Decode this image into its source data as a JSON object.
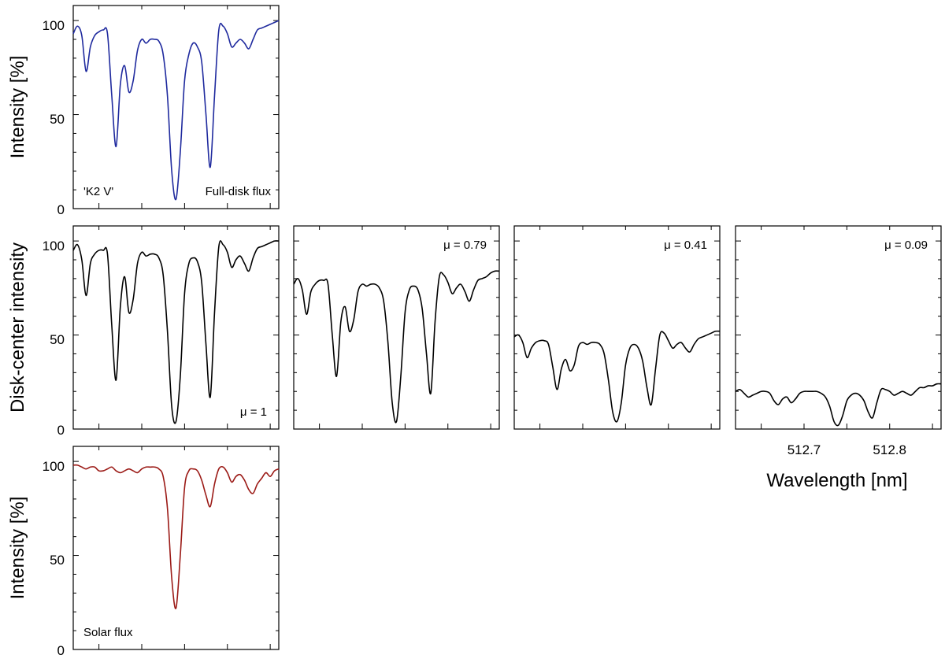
{
  "colors": {
    "k2": "#1f2a9e",
    "disk": "#000000",
    "solar": "#9b1a16"
  },
  "chart_data": [
    {
      "id": "k2",
      "type": "line",
      "ylabel": "Intensity [%]",
      "labels": [
        "'K2 V'",
        "Full-disk flux"
      ],
      "yticks": [
        "0",
        "50",
        "100"
      ],
      "ylim": [
        0,
        108
      ],
      "xlim": [
        512.62,
        512.86
      ],
      "series": [
        {
          "color": "k2",
          "continuum": 97,
          "shape": 1.0,
          "x": [
            512.62,
            512.625,
            512.63,
            512.635,
            512.64,
            512.645,
            512.65,
            512.655,
            512.66,
            512.665,
            512.67,
            512.675,
            512.68,
            512.685,
            512.69,
            512.695,
            512.7,
            512.705,
            512.71,
            512.715,
            512.72,
            512.725,
            512.73,
            512.735,
            512.74,
            512.745,
            512.75,
            512.755,
            512.76,
            512.765,
            512.77,
            512.775,
            512.78,
            512.785,
            512.79,
            512.795,
            512.8,
            512.805,
            512.81,
            512.815,
            512.82,
            512.825,
            512.83,
            512.835,
            512.84,
            512.845,
            512.85,
            512.855,
            512.86
          ],
          "y": [
            93,
            97,
            92,
            73,
            86,
            92,
            94,
            95,
            93,
            60,
            33,
            66,
            76,
            62,
            68,
            84,
            90,
            88,
            90,
            90,
            89,
            82,
            60,
            20,
            5,
            30,
            68,
            82,
            88,
            86,
            78,
            50,
            22,
            60,
            95,
            97,
            93,
            86,
            88,
            90,
            88,
            85,
            90,
            95,
            96,
            97,
            98,
            99,
            100
          ]
        }
      ]
    },
    {
      "id": "mu1",
      "type": "line",
      "ylabel": "Disk-center intensity",
      "labels": [
        "μ = 1"
      ],
      "yticks": [
        "0",
        "50",
        "100"
      ],
      "ylim": [
        0,
        108
      ],
      "xlim": [
        512.62,
        512.86
      ],
      "series": [
        {
          "color": "disk",
          "x": [
            512.62,
            512.625,
            512.63,
            512.635,
            512.64,
            512.645,
            512.65,
            512.655,
            512.66,
            512.665,
            512.67,
            512.675,
            512.68,
            512.685,
            512.69,
            512.695,
            512.7,
            512.705,
            512.71,
            512.715,
            512.72,
            512.725,
            512.73,
            512.735,
            512.74,
            512.745,
            512.75,
            512.755,
            512.76,
            512.765,
            512.77,
            512.775,
            512.78,
            512.785,
            512.79,
            512.795,
            512.8,
            512.805,
            512.81,
            512.815,
            512.82,
            512.825,
            512.83,
            512.835,
            512.84,
            512.845,
            512.85,
            512.855,
            512.86
          ],
          "y": [
            95,
            98,
            90,
            71,
            88,
            93,
            95,
            95,
            93,
            55,
            26,
            65,
            81,
            62,
            69,
            88,
            94,
            92,
            93,
            93,
            91,
            82,
            52,
            12,
            4,
            28,
            72,
            88,
            91,
            89,
            78,
            45,
            17,
            62,
            97,
            98,
            94,
            86,
            90,
            92,
            88,
            84,
            91,
            96,
            97,
            98,
            99,
            100,
            100
          ]
        }
      ]
    },
    {
      "id": "mu079",
      "type": "line",
      "labels": [
        "μ = 0.79"
      ],
      "ylim": [
        0,
        108
      ],
      "xlim": [
        512.62,
        512.86
      ],
      "series": [
        {
          "color": "disk",
          "x": [
            512.62,
            512.625,
            512.63,
            512.635,
            512.64,
            512.645,
            512.65,
            512.655,
            512.66,
            512.665,
            512.67,
            512.675,
            512.68,
            512.685,
            512.69,
            512.695,
            512.7,
            512.705,
            512.71,
            512.715,
            512.72,
            512.725,
            512.73,
            512.735,
            512.74,
            512.745,
            512.75,
            512.755,
            512.76,
            512.765,
            512.77,
            512.775,
            512.78,
            512.785,
            512.79,
            512.795,
            512.8,
            512.805,
            512.81,
            512.815,
            512.82,
            512.825,
            512.83,
            512.835,
            512.84,
            512.845,
            512.85,
            512.855,
            512.86
          ],
          "y": [
            77,
            80,
            74,
            61,
            73,
            77,
            79,
            79,
            77,
            50,
            28,
            57,
            65,
            52,
            58,
            73,
            77,
            76,
            77,
            77,
            75,
            68,
            46,
            14,
            4,
            28,
            62,
            74,
            76,
            74,
            64,
            40,
            19,
            57,
            81,
            82,
            78,
            72,
            75,
            77,
            73,
            68,
            74,
            79,
            80,
            81,
            83,
            84,
            84
          ]
        }
      ]
    },
    {
      "id": "mu041",
      "type": "line",
      "labels": [
        "μ = 0.41"
      ],
      "ylim": [
        0,
        108
      ],
      "xlim": [
        512.62,
        512.86
      ],
      "series": [
        {
          "color": "disk",
          "x": [
            512.62,
            512.625,
            512.63,
            512.635,
            512.64,
            512.645,
            512.65,
            512.655,
            512.66,
            512.665,
            512.67,
            512.675,
            512.68,
            512.685,
            512.69,
            512.695,
            512.7,
            512.705,
            512.71,
            512.715,
            512.72,
            512.725,
            512.73,
            512.735,
            512.74,
            512.745,
            512.75,
            512.755,
            512.76,
            512.765,
            512.77,
            512.775,
            512.78,
            512.785,
            512.79,
            512.795,
            512.8,
            512.805,
            512.81,
            512.815,
            512.82,
            512.825,
            512.83,
            512.835,
            512.84,
            512.845,
            512.85,
            512.855,
            512.86
          ],
          "y": [
            49,
            50,
            46,
            38,
            43,
            46,
            47,
            47,
            45,
            33,
            21,
            32,
            37,
            31,
            34,
            44,
            46,
            45,
            46,
            46,
            45,
            40,
            26,
            9,
            4,
            14,
            34,
            43,
            45,
            43,
            36,
            22,
            13,
            32,
            50,
            51,
            47,
            43,
            45,
            46,
            43,
            41,
            45,
            48,
            49,
            50,
            51,
            52,
            52
          ]
        }
      ]
    },
    {
      "id": "mu009",
      "type": "line",
      "labels": [
        "μ = 0.09"
      ],
      "xlabel": "Wavelength [nm]",
      "xticks": [
        "512.7",
        "512.8"
      ],
      "xtick_values": [
        512.7,
        512.8
      ],
      "ylim": [
        0,
        108
      ],
      "xlim": [
        512.62,
        512.86
      ],
      "series": [
        {
          "color": "disk",
          "x": [
            512.62,
            512.625,
            512.63,
            512.635,
            512.64,
            512.645,
            512.65,
            512.655,
            512.66,
            512.665,
            512.67,
            512.675,
            512.68,
            512.685,
            512.69,
            512.695,
            512.7,
            512.705,
            512.71,
            512.715,
            512.72,
            512.725,
            512.73,
            512.735,
            512.74,
            512.745,
            512.75,
            512.755,
            512.76,
            512.765,
            512.77,
            512.775,
            512.78,
            512.785,
            512.79,
            512.795,
            512.8,
            512.805,
            512.81,
            512.815,
            512.82,
            512.825,
            512.83,
            512.835,
            512.84,
            512.845,
            512.85,
            512.855,
            512.86
          ],
          "y": [
            20,
            21,
            19,
            17,
            18,
            19,
            20,
            20,
            19,
            15,
            13,
            16,
            17,
            14,
            16,
            19,
            20,
            20,
            20,
            20,
            19,
            17,
            12,
            4,
            2,
            7,
            15,
            18,
            19,
            18,
            15,
            9,
            6,
            14,
            21,
            21,
            20,
            18,
            19,
            20,
            19,
            18,
            20,
            22,
            22,
            23,
            23,
            24,
            24
          ]
        }
      ]
    },
    {
      "id": "solar",
      "type": "line",
      "ylabel": "Intensity [%]",
      "labels": [
        "Solar flux"
      ],
      "yticks": [
        "0",
        "50",
        "100"
      ],
      "ylim": [
        0,
        108
      ],
      "xlim": [
        512.62,
        512.86
      ],
      "series": [
        {
          "color": "solar",
          "x": [
            512.62,
            512.625,
            512.63,
            512.635,
            512.64,
            512.645,
            512.65,
            512.655,
            512.66,
            512.665,
            512.67,
            512.675,
            512.68,
            512.685,
            512.69,
            512.695,
            512.7,
            512.705,
            512.71,
            512.715,
            512.72,
            512.725,
            512.73,
            512.735,
            512.74,
            512.745,
            512.75,
            512.755,
            512.76,
            512.765,
            512.77,
            512.775,
            512.78,
            512.785,
            512.79,
            512.795,
            512.8,
            512.805,
            512.81,
            512.815,
            512.82,
            512.825,
            512.83,
            512.835,
            512.84,
            512.845,
            512.85,
            512.855,
            512.86
          ],
          "y": [
            98,
            98,
            97,
            96,
            97,
            97,
            95,
            95,
            96,
            97,
            95,
            94,
            95,
            96,
            95,
            94,
            96,
            97,
            97,
            97,
            96,
            92,
            75,
            38,
            22,
            50,
            86,
            95,
            96,
            95,
            90,
            82,
            76,
            88,
            96,
            97,
            94,
            89,
            92,
            93,
            90,
            85,
            83,
            88,
            91,
            94,
            92,
            95,
            96
          ]
        }
      ]
    }
  ]
}
